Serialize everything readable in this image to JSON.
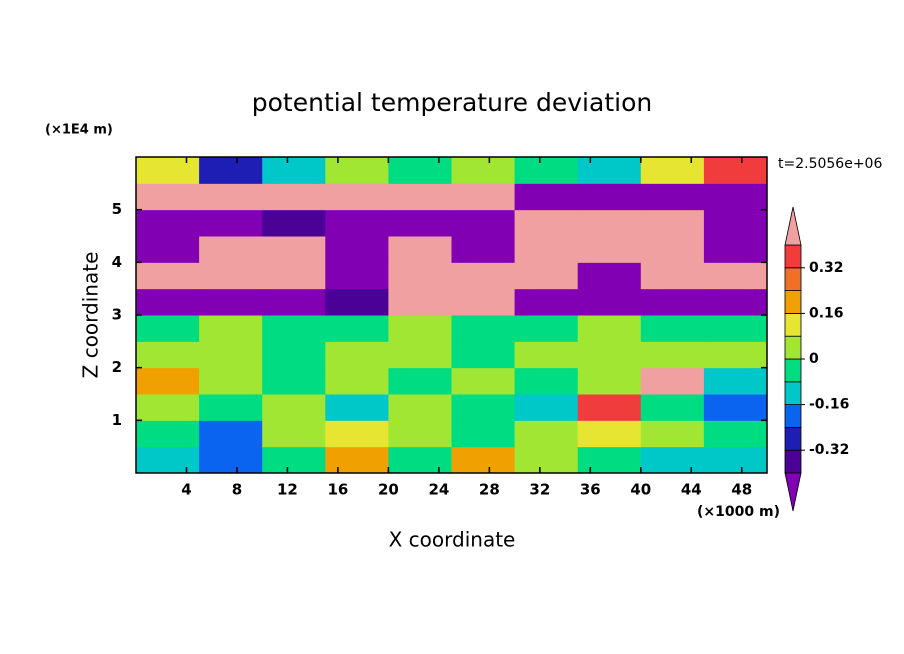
{
  "chart_data": {
    "type": "contour",
    "title": "potential temperature deviation",
    "annotation": "t=2.5056e+06",
    "xlabel": "X coordinate",
    "ylabel": "Z coordinate",
    "x_unit": "(×1000 m)",
    "y_unit": "(×1E4 m)",
    "xlim": [
      0,
      50
    ],
    "ylim": [
      0,
      6
    ],
    "xticks": [
      4,
      8,
      12,
      16,
      20,
      24,
      28,
      32,
      36,
      40,
      44,
      48
    ],
    "yticks": [
      1,
      2,
      3,
      4,
      5
    ],
    "x": [
      2.5,
      7.5,
      12.5,
      17.5,
      22.5,
      27.5,
      32.5,
      37.5,
      42.5,
      47.5
    ],
    "z": [
      0.25,
      0.75,
      1.25,
      1.75,
      2.25,
      2.75,
      3.25,
      3.75,
      4.25,
      4.75,
      5.25,
      5.75
    ],
    "values": [
      [
        -0.12,
        -0.2,
        -0.04,
        0.2,
        -0.04,
        0.2,
        0.04,
        -0.04,
        -0.12,
        -0.12
      ],
      [
        -0.04,
        -0.2,
        0.04,
        0.12,
        0.04,
        -0.04,
        0.04,
        0.12,
        0.04,
        -0.04
      ],
      [
        0.04,
        -0.04,
        0.04,
        -0.12,
        0.04,
        -0.04,
        -0.12,
        0.36,
        -0.04,
        -0.2
      ],
      [
        0.2,
        0.04,
        -0.04,
        0.04,
        -0.04,
        0.04,
        -0.04,
        0.04,
        0.45,
        -0.12
      ],
      [
        0.04,
        0.04,
        -0.04,
        0.04,
        0.04,
        -0.04,
        0.04,
        0.04,
        0.04,
        0.04
      ],
      [
        -0.04,
        0.04,
        -0.04,
        -0.04,
        0.04,
        -0.04,
        -0.04,
        0.04,
        -0.04,
        -0.04
      ],
      [
        -0.45,
        -0.45,
        -0.45,
        -0.36,
        0.45,
        0.45,
        -0.45,
        -0.45,
        -0.45,
        -0.45
      ],
      [
        0.45,
        0.45,
        0.45,
        -0.45,
        0.45,
        0.45,
        0.45,
        -0.45,
        0.45,
        0.45
      ],
      [
        -0.45,
        0.45,
        0.45,
        -0.45,
        0.45,
        -0.45,
        0.45,
        0.45,
        0.45,
        -0.45
      ],
      [
        -0.45,
        -0.45,
        -0.36,
        -0.45,
        -0.45,
        -0.45,
        0.45,
        0.45,
        0.45,
        -0.45
      ],
      [
        0.45,
        0.45,
        0.45,
        0.45,
        0.45,
        0.45,
        -0.45,
        -0.45,
        -0.45,
        -0.45
      ],
      [
        0.12,
        -0.28,
        -0.12,
        0.04,
        -0.04,
        0.04,
        -0.04,
        -0.12,
        0.12,
        0.36
      ]
    ],
    "levels": [
      -0.4,
      -0.32,
      -0.24,
      -0.16,
      -0.08,
      0,
      0.08,
      0.16,
      0.24,
      0.32,
      0.4
    ],
    "colors": [
      "#8200b4",
      "#4b0096",
      "#1e1eb4",
      "#0a64f0",
      "#00c8c8",
      "#00dc82",
      "#a0e632",
      "#e6e632",
      "#f0a000",
      "#f07028",
      "#f03c3c",
      "#f0a0a0"
    ],
    "colorbar_ticks": [
      -0.32,
      -0.16,
      0,
      0.16,
      0.32
    ]
  }
}
